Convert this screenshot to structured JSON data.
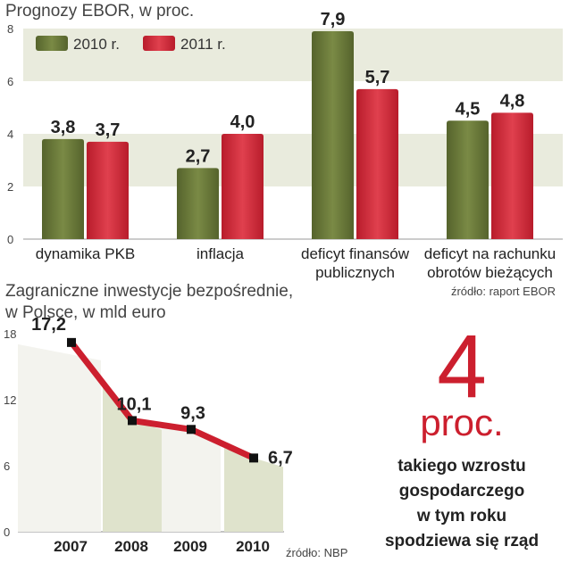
{
  "chart_data": [
    {
      "type": "bar",
      "title": "Prognozy EBOR, w proc.",
      "categories": [
        "dynamika PKB",
        "inflacja",
        "deficyt finansów publicznych",
        "deficyt na rachunku obrotów bieżących"
      ],
      "category_lines": [
        [
          "dynamika PKB"
        ],
        [
          "inflacja"
        ],
        [
          "deficyt finansów",
          "publicznych"
        ],
        [
          "deficyt na rachunku",
          "obrotów bieżących"
        ]
      ],
      "series": [
        {
          "name": "2010 r.",
          "values": [
            3.8,
            2.7,
            7.9,
            4.5
          ],
          "labels": [
            "3,8",
            "2,7",
            "7,9",
            "4,5"
          ],
          "color": "#6b7a3a"
        },
        {
          "name": "2011 r.",
          "values": [
            3.7,
            4.0,
            5.7,
            4.8
          ],
          "labels": [
            "3,7",
            "4,0",
            "5,7",
            "4,8"
          ],
          "color": "#d42a3a"
        }
      ],
      "ylim": [
        0,
        8
      ],
      "yticks": [
        0,
        2,
        4,
        6,
        8
      ],
      "legend": "top-left",
      "grid": "banded",
      "source": "źródło: raport EBOR"
    },
    {
      "type": "line",
      "title_lines": [
        "Zagraniczne inwestycje bezpośrednie,",
        "w Polsce, w mld euro"
      ],
      "x": [
        "2007",
        "2008",
        "2009",
        "2010"
      ],
      "values": [
        17.2,
        10.1,
        9.3,
        6.7
      ],
      "labels": [
        "17,2",
        "10,1",
        "9,3",
        "6,7"
      ],
      "ylim": [
        0,
        18
      ],
      "yticks": [
        0,
        6,
        12,
        18
      ],
      "line_color": "#cc1f2e",
      "source": "źródło: NBP"
    }
  ],
  "highlight": {
    "number": "4",
    "unit": "proc.",
    "lines": [
      {
        "text": "takiego wzrostu",
        "bold": true
      },
      {
        "text": "gospodarczego",
        "bold": true
      },
      {
        "text": "w tym roku",
        "bold": true
      },
      {
        "text": "spodziewa się rząd",
        "bold": true
      }
    ],
    "color": "#cc1f2e"
  }
}
